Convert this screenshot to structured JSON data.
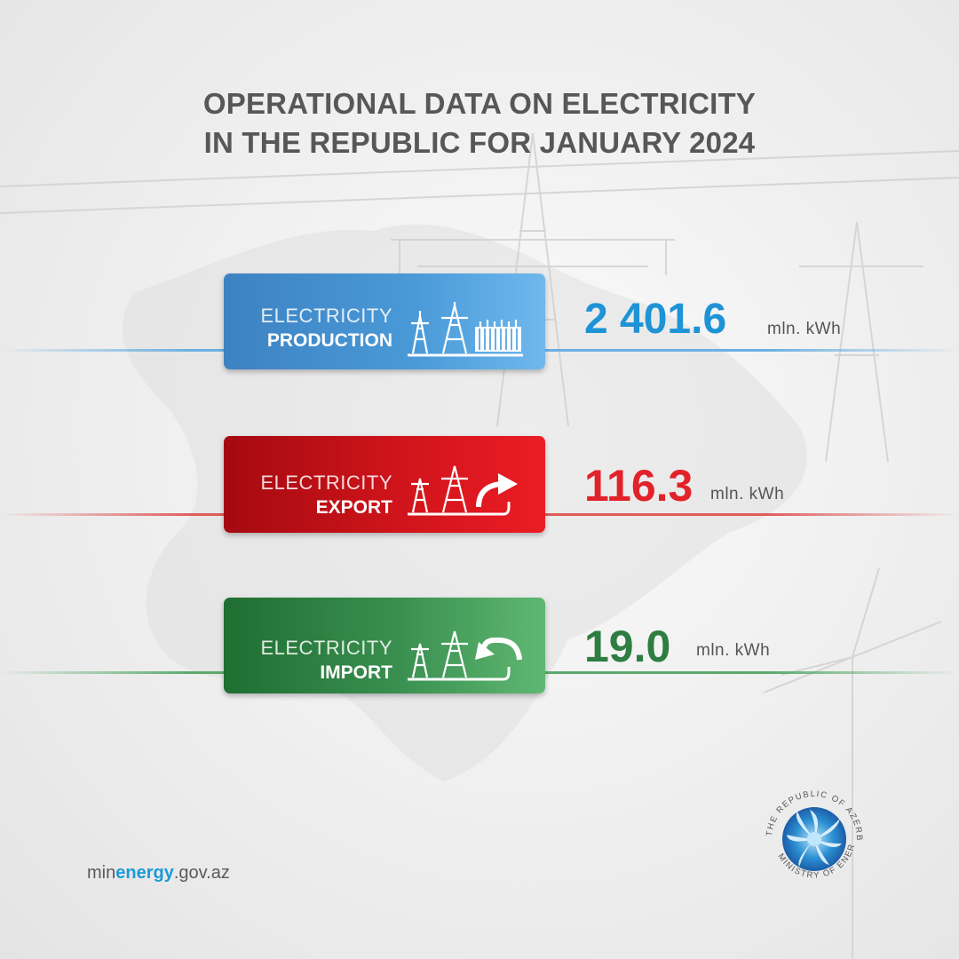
{
  "title": {
    "line1": "OPERATIONAL DATA ON ELECTRICITY",
    "line2": "IN THE REPUBLIC FOR JANUARY 2024"
  },
  "items": [
    {
      "label_top": "ELECTRICITY",
      "label_bottom": "PRODUCTION",
      "value": "2 401.6",
      "unit": "mln. kWh",
      "color": "#1e93d6",
      "icon": "power-plant-icon"
    },
    {
      "label_top": "ELECTRICITY",
      "label_bottom": "EXPORT",
      "value": "116.3",
      "unit": "mln. kWh",
      "color": "#e2222a",
      "icon": "export-arrow-icon"
    },
    {
      "label_top": "ELECTRICITY",
      "label_bottom": "IMPORT",
      "value": "19.0",
      "unit": "mln. kWh",
      "color": "#2e7d41",
      "icon": "import-arrow-icon"
    }
  ],
  "footer": {
    "site_prefix": "min",
    "site_brand": "energy",
    "site_suffix": ".gov.az",
    "seal_text_top": "THE REPUBLIC OF AZERBAIJAN",
    "seal_text_bottom": "MINISTRY OF ENERGY"
  }
}
